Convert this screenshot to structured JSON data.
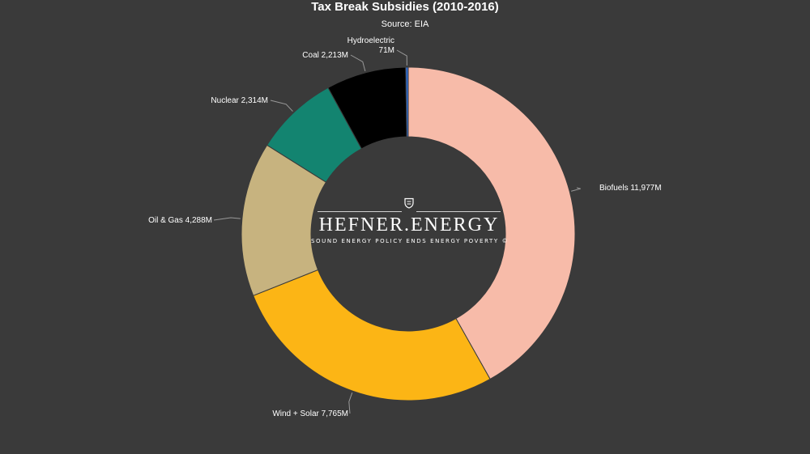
{
  "chart_data": {
    "type": "pie",
    "donut": true,
    "title": "Tax Break Subsidies (2010-2016)",
    "subtitle": "Source: EIA",
    "slices": [
      {
        "name": "Biofuels",
        "value": 11977,
        "value_label": "11,977M",
        "color": "#f7bba9"
      },
      {
        "name": "Wind + Solar",
        "value": 7765,
        "value_label": "7,765M",
        "color": "#fcb515"
      },
      {
        "name": "Oil & Gas",
        "value": 4288,
        "value_label": "4,288M",
        "color": "#c7b37f"
      },
      {
        "name": "Nuclear",
        "value": 2314,
        "value_label": "2,314M",
        "color": "#138470"
      },
      {
        "name": "Coal",
        "value": 2213,
        "value_label": "2,213M",
        "color": "#000000"
      },
      {
        "name": "Hydroelectric",
        "value": 71,
        "value_label": "71M",
        "color": "#2f6fd6"
      }
    ],
    "legend": "none"
  },
  "watermark": {
    "name": "HEFNER.ENERGY",
    "tagline": "SOUND ENERGY POLICY ENDS ENERGY POVERTY ©"
  }
}
